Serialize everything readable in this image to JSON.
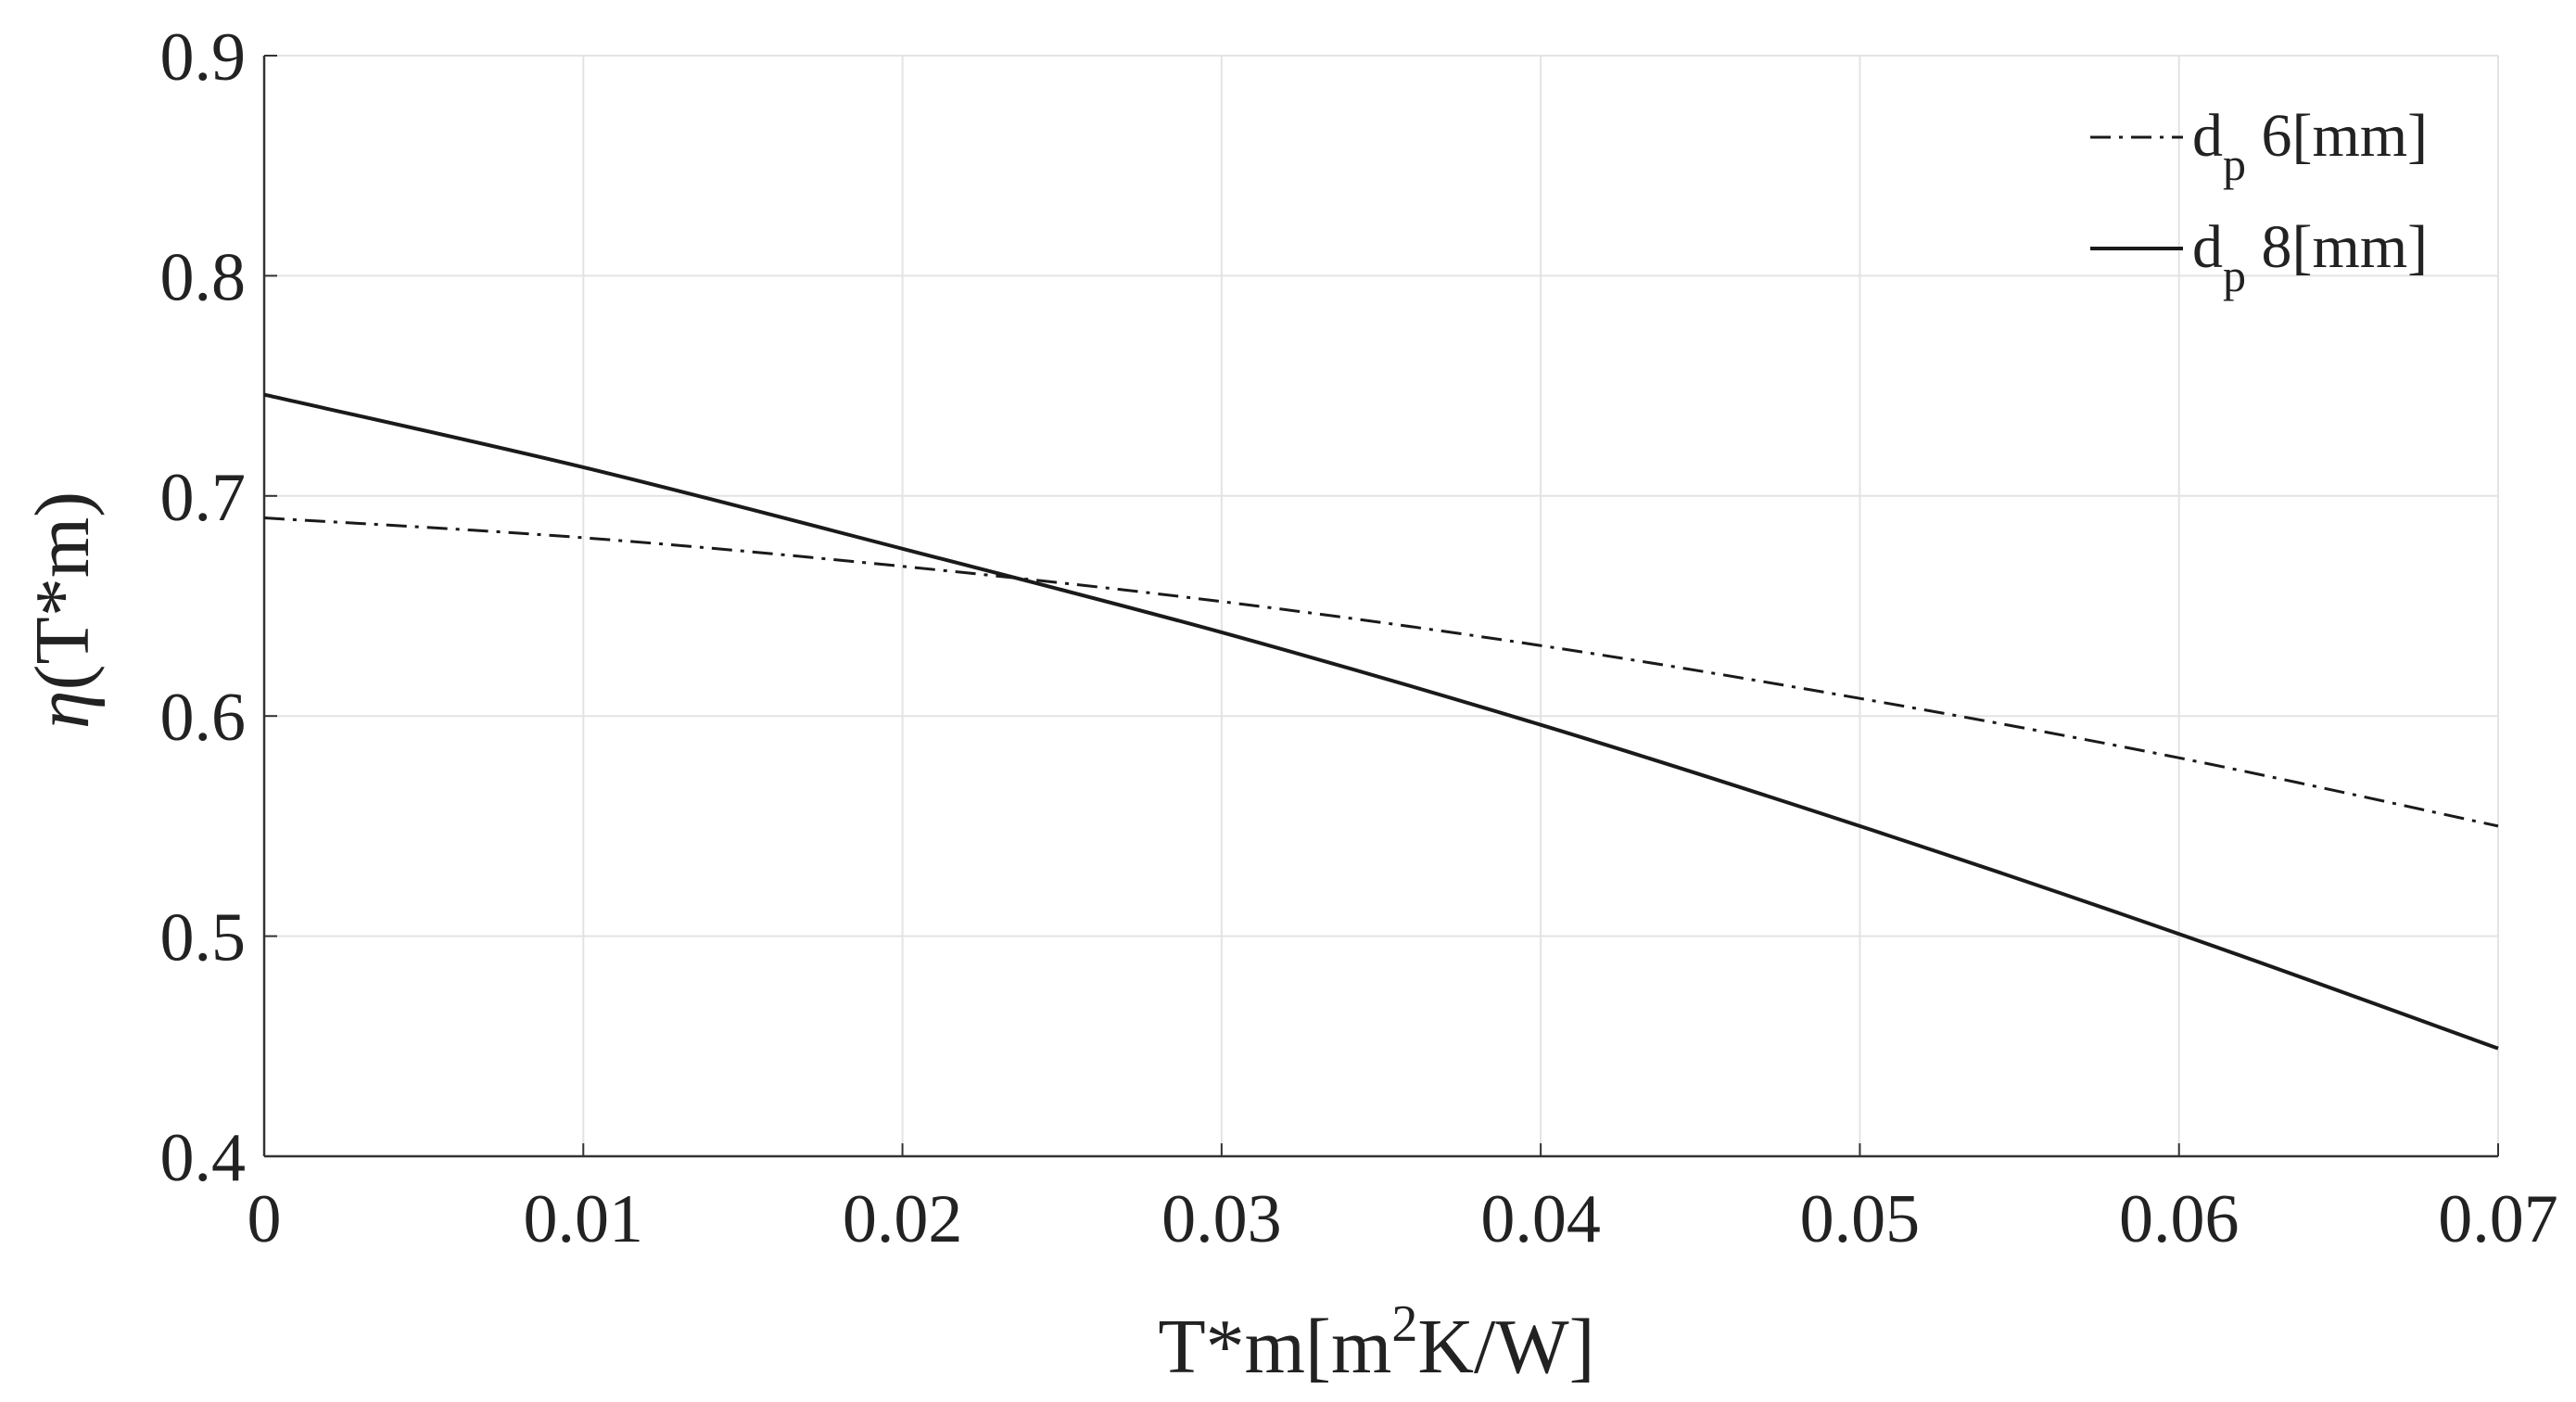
{
  "chart_data": {
    "type": "line",
    "title": "",
    "xlabel": {
      "main": "T*m[m",
      "sup": "2",
      "rest": "K/W]"
    },
    "ylabel": {
      "eta": "η",
      "rest": "(T*m)"
    },
    "xlim": [
      0,
      0.07
    ],
    "ylim": [
      0.4,
      0.9
    ],
    "xticks": [
      0,
      0.01,
      0.02,
      0.03,
      0.04,
      0.05,
      0.06,
      0.07
    ],
    "xtick_labels": [
      "0",
      "0.01",
      "0.02",
      "0.03",
      "0.04",
      "0.05",
      "0.06",
      "0.07"
    ],
    "yticks": [
      0.4,
      0.5,
      0.6,
      0.7,
      0.8,
      0.9
    ],
    "ytick_labels": [
      "0.4",
      "0.5",
      "0.6",
      "0.7",
      "0.8",
      "0.9"
    ],
    "grid": true,
    "legend_position": "top-right",
    "x": [
      0,
      0.01,
      0.02,
      0.03,
      0.04,
      0.05,
      0.06,
      0.07
    ],
    "series": [
      {
        "id": "dp6",
        "legend": {
          "d": "d",
          "sub": "p",
          "rest": " 6[mm]"
        },
        "line_style": "dash-dot",
        "color": "#1a1a1a",
        "values": [
          0.69,
          0.681,
          0.668,
          0.652,
          0.632,
          0.608,
          0.581,
          0.55
        ]
      },
      {
        "id": "dp8",
        "legend": {
          "d": "d",
          "sub": "p",
          "rest": " 8[mm]"
        },
        "line_style": "solid",
        "color": "#1a1a1a",
        "values": [
          0.746,
          0.713,
          0.676,
          0.638,
          0.596,
          0.55,
          0.501,
          0.449
        ]
      }
    ]
  }
}
